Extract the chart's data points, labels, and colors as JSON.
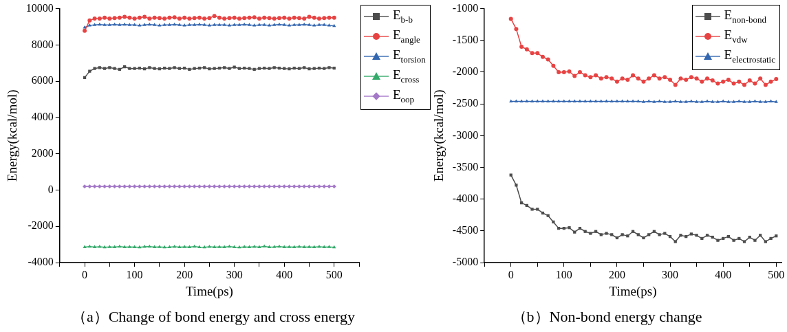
{
  "chart_data": [
    {
      "type": "line",
      "title": "（a）Change of bond energy and cross energy",
      "xlabel": "Time(ps)",
      "ylabel": "Energy(kcal/mol)",
      "x": [
        0,
        10,
        20,
        30,
        40,
        50,
        60,
        70,
        80,
        90,
        100,
        110,
        120,
        130,
        140,
        150,
        160,
        170,
        180,
        190,
        200,
        210,
        220,
        230,
        240,
        250,
        260,
        270,
        280,
        290,
        300,
        310,
        320,
        330,
        340,
        350,
        360,
        370,
        380,
        390,
        400,
        410,
        420,
        430,
        440,
        450,
        460,
        470,
        480,
        490,
        500
      ],
      "xlim": [
        -50,
        550
      ],
      "xticks": [
        {
          "value": -50,
          "label": null
        },
        0,
        {
          "value": 50,
          "label": null
        },
        100,
        {
          "value": 150,
          "label": null
        },
        200,
        {
          "value": 250,
          "label": null
        },
        300,
        {
          "value": 350,
          "label": null
        },
        400,
        {
          "value": 450,
          "label": null
        },
        500,
        {
          "value": 550,
          "label": null
        }
      ],
      "ylim": [
        -4000,
        10000
      ],
      "yticks": [
        -4000,
        -2000,
        0,
        2000,
        4000,
        6000,
        8000,
        10000
      ],
      "grid": false,
      "legend": "top right",
      "line_style": "solid",
      "series": [
        {
          "name": "E$_{b-b}$",
          "color": "#4d4d4d",
          "marker": "square",
          "values": [
            6200,
            6550,
            6700,
            6750,
            6700,
            6750,
            6700,
            6650,
            6800,
            6700,
            6700,
            6720,
            6680,
            6750,
            6700,
            6680,
            6720,
            6700,
            6750,
            6700,
            6720,
            6650,
            6700,
            6720,
            6750,
            6680,
            6700,
            6720,
            6750,
            6700,
            6780,
            6700,
            6720,
            6700,
            6650,
            6700,
            6720,
            6700,
            6750,
            6720,
            6700,
            6680,
            6720,
            6700,
            6750,
            6680,
            6700,
            6720,
            6700,
            6750,
            6720
          ]
        },
        {
          "name": "E$_{angle}$",
          "color": "#e84343",
          "marker": "circle",
          "values": [
            8780,
            9350,
            9450,
            9450,
            9500,
            9450,
            9480,
            9500,
            9550,
            9500,
            9450,
            9500,
            9550,
            9450,
            9500,
            9480,
            9450,
            9500,
            9520,
            9450,
            9500,
            9450,
            9480,
            9500,
            9450,
            9480,
            9600,
            9500,
            9450,
            9480,
            9500,
            9450,
            9480,
            9500,
            9520,
            9450,
            9500,
            9480,
            9450,
            9480,
            9500,
            9450,
            9500,
            9480,
            9450,
            9550,
            9500,
            9450,
            9480,
            9500,
            9500
          ]
        },
        {
          "name": "E$_{torsion}$",
          "color": "#3366b0",
          "marker": "triangle",
          "values": [
            8960,
            9080,
            9100,
            9120,
            9100,
            9100,
            9120,
            9100,
            9120,
            9100,
            9100,
            9080,
            9100,
            9120,
            9100,
            9080,
            9100,
            9100,
            9120,
            9100,
            9080,
            9100,
            9100,
            9120,
            9100,
            9080,
            9100,
            9100,
            9100,
            9080,
            9100,
            9100,
            9120,
            9100,
            9080,
            9100,
            9100,
            9080,
            9100,
            9120,
            9100,
            9080,
            9100,
            9100,
            9120,
            9100,
            9080,
            9100,
            9100,
            9080,
            9050
          ]
        },
        {
          "name": "E$_{cross}$",
          "color": "#33aa6a",
          "marker": "triangle",
          "values": [
            -3150,
            -3120,
            -3150,
            -3130,
            -3160,
            -3140,
            -3150,
            -3120,
            -3150,
            -3140,
            -3150,
            -3160,
            -3130,
            -3120,
            -3150,
            -3140,
            -3160,
            -3150,
            -3130,
            -3150,
            -3140,
            -3150,
            -3120,
            -3150,
            -3160,
            -3130,
            -3150,
            -3140,
            -3150,
            -3120,
            -3150,
            -3160,
            -3140,
            -3150,
            -3130,
            -3150,
            -3110,
            -3150,
            -3140,
            -3120,
            -3150,
            -3140,
            -3150,
            -3130,
            -3150,
            -3140,
            -3150,
            -3130,
            -3150,
            -3140,
            -3160
          ]
        },
        {
          "name": "E$_{oop}$",
          "color": "#a478c8",
          "marker": "diamond",
          "values": [
            200,
            200,
            200,
            200,
            200,
            200,
            200,
            200,
            200,
            200,
            200,
            200,
            200,
            200,
            200,
            200,
            200,
            200,
            200,
            200,
            200,
            200,
            200,
            200,
            200,
            200,
            200,
            200,
            200,
            200,
            200,
            200,
            200,
            200,
            200,
            200,
            200,
            200,
            200,
            200,
            200,
            200,
            200,
            200,
            200,
            200,
            200,
            200,
            200,
            200,
            200
          ]
        }
      ]
    },
    {
      "type": "line",
      "title": "（b）Non-bond energy change",
      "xlabel": "Time(ps)",
      "ylabel": "Energy(kcal/mol)",
      "x": [
        0,
        10,
        20,
        30,
        40,
        50,
        60,
        70,
        80,
        90,
        100,
        110,
        120,
        130,
        140,
        150,
        160,
        170,
        180,
        190,
        200,
        210,
        220,
        230,
        240,
        250,
        260,
        270,
        280,
        290,
        300,
        310,
        320,
        330,
        340,
        350,
        360,
        370,
        380,
        390,
        400,
        410,
        420,
        430,
        440,
        450,
        460,
        470,
        480,
        490,
        500
      ],
      "xlim": [
        -50,
        510
      ],
      "xticks": [
        {
          "value": -50,
          "label": null
        },
        0,
        {
          "value": 50,
          "label": null
        },
        100,
        {
          "value": 150,
          "label": null
        },
        200,
        {
          "value": 250,
          "label": null
        },
        300,
        {
          "value": 350,
          "label": null
        },
        400,
        {
          "value": 450,
          "label": null
        },
        500
      ],
      "ylim": [
        -5000,
        -1000
      ],
      "yticks": [
        -5000,
        -4500,
        -4000,
        -3500,
        -3000,
        -2500,
        -2000,
        -1500,
        -1000
      ],
      "grid": false,
      "legend": "top right",
      "line_style": "solid",
      "series": [
        {
          "name": "E$_{non-bond}$",
          "color": "#4d4d4d",
          "marker": "square",
          "values": [
            -3620,
            -3780,
            -4060,
            -4100,
            -4160,
            -4160,
            -4220,
            -4260,
            -4360,
            -4460,
            -4460,
            -4450,
            -4520,
            -4460,
            -4510,
            -4540,
            -4510,
            -4560,
            -4540,
            -4560,
            -4610,
            -4560,
            -4580,
            -4510,
            -4560,
            -4610,
            -4560,
            -4510,
            -4560,
            -4540,
            -4590,
            -4670,
            -4570,
            -4590,
            -4550,
            -4570,
            -4620,
            -4570,
            -4600,
            -4650,
            -4620,
            -4590,
            -4650,
            -4620,
            -4670,
            -4600,
            -4650,
            -4570,
            -4670,
            -4620,
            -4580
          ]
        },
        {
          "name": "E$_{vdw}$",
          "color": "#e84343",
          "marker": "circle",
          "values": [
            -1160,
            -1320,
            -1600,
            -1640,
            -1700,
            -1700,
            -1760,
            -1800,
            -1900,
            -2000,
            -2000,
            -1990,
            -2060,
            -2000,
            -2050,
            -2080,
            -2050,
            -2100,
            -2080,
            -2100,
            -2150,
            -2100,
            -2120,
            -2050,
            -2100,
            -2150,
            -2100,
            -2050,
            -2100,
            -2080,
            -2120,
            -2200,
            -2100,
            -2120,
            -2080,
            -2100,
            -2150,
            -2100,
            -2130,
            -2180,
            -2150,
            -2120,
            -2180,
            -2150,
            -2200,
            -2130,
            -2180,
            -2100,
            -2200,
            -2150,
            -2110
          ]
        },
        {
          "name": "E$_{electrostatic}$",
          "color": "#3366b0",
          "marker": "triangle",
          "values": [
            -2460,
            -2460,
            -2460,
            -2460,
            -2460,
            -2460,
            -2460,
            -2460,
            -2460,
            -2460,
            -2460,
            -2460,
            -2460,
            -2460,
            -2460,
            -2460,
            -2460,
            -2460,
            -2460,
            -2460,
            -2460,
            -2460,
            -2460,
            -2460,
            -2460,
            -2470,
            -2460,
            -2470,
            -2460,
            -2470,
            -2470,
            -2460,
            -2470,
            -2470,
            -2460,
            -2470,
            -2470,
            -2460,
            -2470,
            -2470,
            -2460,
            -2470,
            -2470,
            -2460,
            -2470,
            -2470,
            -2460,
            -2470,
            -2470,
            -2460,
            -2470
          ]
        }
      ]
    }
  ]
}
